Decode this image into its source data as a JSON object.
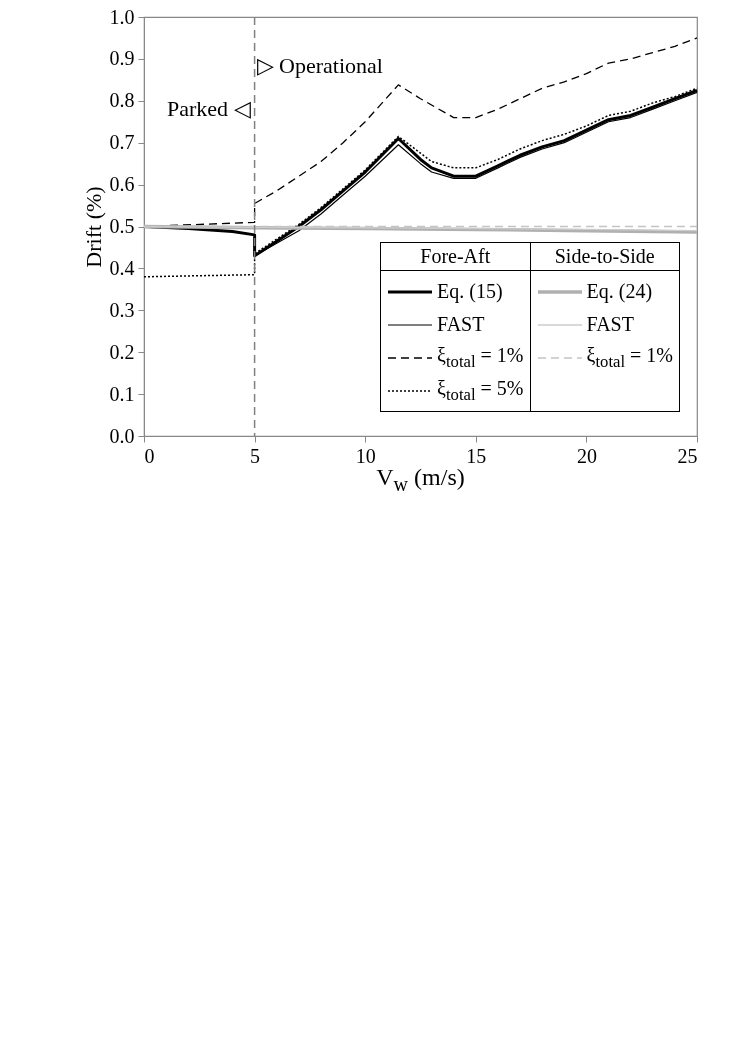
{
  "chart_data": {
    "type": "line",
    "xlabel": "V$_{w}$ (m/s)",
    "ylabel": "Drift (%)",
    "xlim": [
      0,
      25
    ],
    "xticks": [
      0,
      5,
      10,
      15,
      20,
      25
    ],
    "ylim": [
      0,
      1
    ],
    "yticks": [
      {
        "value": 0,
        "label": "0.0"
      },
      0.1,
      0.2,
      0.3,
      0.4,
      0.5,
      0.6,
      0.7,
      0.8,
      0.9,
      {
        "value": 1,
        "label": "1.0"
      }
    ],
    "grid": false,
    "legend": "bottom right",
    "ref_lines": [
      {
        "axis": "x",
        "value": 5,
        "color": "#808080",
        "line_style": "dashed"
      }
    ],
    "annotations": [
      "Parked ◁",
      "▷ Operational",
      "Fore-Aft",
      "Side-to-Side"
    ],
    "series": [
      {
        "name": "Eq. (15)",
        "color": "#000000",
        "line_style": "solid",
        "x": [
          0,
          2,
          4,
          5,
          5,
          6,
          7,
          8,
          9,
          10,
          11.5,
          12.5,
          13,
          14,
          15,
          16,
          17,
          18,
          19,
          20,
          21,
          22,
          23,
          24,
          25
        ],
        "values": [
          0.5,
          0.495,
          0.488,
          0.48,
          0.43,
          0.465,
          0.5,
          0.54,
          0.585,
          0.63,
          0.71,
          0.66,
          0.64,
          0.62,
          0.62,
          0.645,
          0.67,
          0.69,
          0.705,
          0.73,
          0.755,
          0.765,
          0.785,
          0.805,
          0.825
        ]
      },
      {
        "name": "FAST",
        "color": "#000000",
        "line_style": "solid",
        "x": [
          5,
          6,
          7,
          8,
          9,
          10,
          11.5,
          12.5,
          13,
          14,
          15,
          16,
          17,
          18,
          19,
          20,
          21,
          22,
          23,
          24,
          25
        ],
        "values": [
          0.43,
          0.46,
          0.49,
          0.53,
          0.575,
          0.62,
          0.695,
          0.65,
          0.63,
          0.615,
          0.615,
          0.64,
          0.665,
          0.685,
          0.7,
          0.725,
          0.75,
          0.76,
          0.78,
          0.8,
          0.82
        ]
      },
      {
        "name": "ξ$_{total}$ = 1%",
        "color": "#000000",
        "line_style": "dashed",
        "x": [
          0,
          5,
          5,
          6,
          7,
          8,
          9,
          10,
          11.5,
          12.5,
          13,
          14,
          15,
          16,
          17,
          18,
          19,
          20,
          21,
          22,
          23,
          24,
          25
        ],
        "values": [
          0.5,
          0.51,
          0.555,
          0.585,
          0.62,
          0.655,
          0.7,
          0.75,
          0.838,
          0.805,
          0.79,
          0.76,
          0.76,
          0.78,
          0.805,
          0.83,
          0.845,
          0.865,
          0.89,
          0.9,
          0.915,
          0.93,
          0.95
        ]
      },
      {
        "name": "ξ$_{total}$ = 5%",
        "color": "#000000",
        "line_style": "dotted",
        "x": [
          0,
          5,
          5,
          6,
          7,
          8,
          9,
          10,
          11.5,
          12.5,
          13,
          14,
          15,
          16,
          17,
          18,
          19,
          20,
          21,
          22,
          23,
          24,
          25
        ],
        "values": [
          0.38,
          0.385,
          0.435,
          0.47,
          0.505,
          0.545,
          0.59,
          0.635,
          0.715,
          0.675,
          0.655,
          0.64,
          0.64,
          0.66,
          0.685,
          0.705,
          0.72,
          0.74,
          0.765,
          0.775,
          0.795,
          0.81,
          0.83
        ]
      },
      {
        "name": "Eq. (24)",
        "color": "#b0b0b0",
        "line_style": "solid",
        "x": [
          0,
          5,
          10,
          15,
          20,
          25
        ],
        "values": [
          0.5,
          0.497,
          0.495,
          0.493,
          0.49,
          0.487
        ]
      },
      {
        "name": "FAST",
        "color": "#cccccc",
        "line_style": "solid",
        "x": [
          0,
          5,
          10,
          15,
          20,
          25
        ],
        "values": [
          0.5,
          0.498,
          0.497,
          0.495,
          0.493,
          0.49
        ]
      },
      {
        "name": "ξ$_{total}$ = 1%",
        "color": "#c4c4c4",
        "line_style": "dashed",
        "x": [
          0,
          5,
          10,
          15,
          20,
          25
        ],
        "values": [
          0.5,
          0.5,
          0.5,
          0.5,
          0.5,
          0.5
        ]
      }
    ]
  }
}
